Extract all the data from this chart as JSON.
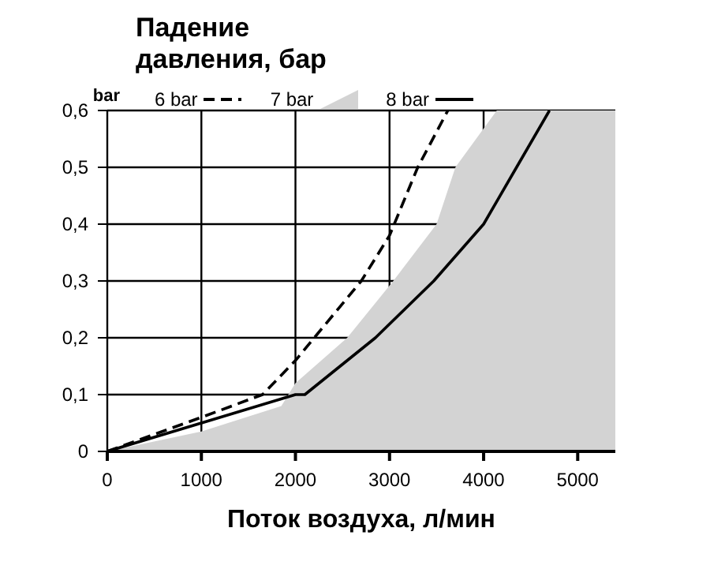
{
  "chart_data": {
    "type": "line",
    "title": "Падение давления, бар",
    "xlabel": "Поток воздуха, л/мин",
    "ylabel": "bar",
    "xlim": [
      0,
      5400
    ],
    "xticks": [
      0,
      1000,
      2000,
      3000,
      4000,
      5000
    ],
    "ylim": [
      0,
      0.6
    ],
    "yticks": [
      {
        "value": 0,
        "label": "0"
      },
      {
        "value": 0.1,
        "label": "0,1"
      },
      {
        "value": 0.2,
        "label": "0,2"
      },
      {
        "value": 0.3,
        "label": "0,3"
      },
      {
        "value": 0.4,
        "label": "0,4"
      },
      {
        "value": 0.5,
        "label": "0,5"
      },
      {
        "value": 0.6,
        "label": "0,6"
      }
    ],
    "grid": true,
    "legend": "top",
    "series": [
      {
        "name": "6 bar",
        "type": "line",
        "line_style": "dashed",
        "color": "#000000",
        "x": [
          0,
          1000,
          1650,
          2000,
          2300,
          2700,
          3000,
          3300,
          3620
        ],
        "values": [
          0,
          0.06,
          0.1,
          0.16,
          0.22,
          0.3,
          0.38,
          0.5,
          0.6
        ]
      },
      {
        "name": "7 bar",
        "type": "area",
        "color": "#d3d3d3",
        "x": [
          0,
          1000,
          1850,
          2000,
          2550,
          3040,
          3500,
          3600,
          3700,
          4140,
          5400
        ],
        "values": [
          0,
          0.035,
          0.08,
          0.12,
          0.2,
          0.3,
          0.4,
          0.45,
          0.5,
          0.6,
          0.6
        ]
      },
      {
        "name": "8 bar",
        "type": "line",
        "line_style": "solid",
        "color": "#000000",
        "x": [
          0,
          1000,
          2000,
          2100,
          2850,
          3470,
          4000,
          4350,
          4700
        ],
        "values": [
          0,
          0.05,
          0.1,
          0.1,
          0.2,
          0.3,
          0.4,
          0.5,
          0.6
        ]
      }
    ]
  }
}
